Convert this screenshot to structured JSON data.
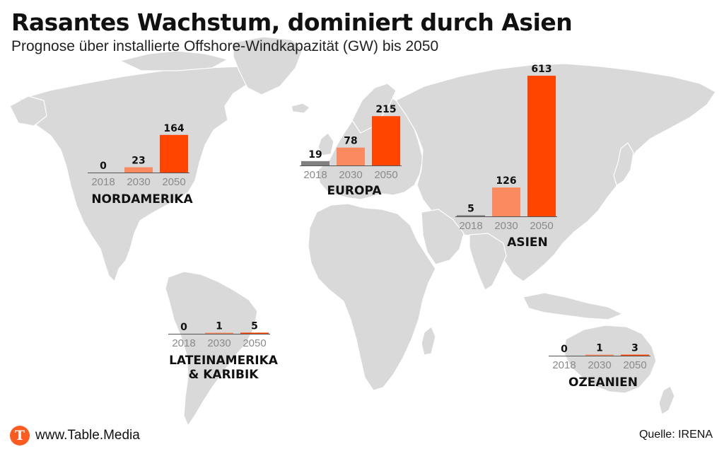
{
  "title": "Rasantes Wachstum, dominiert durch Asien",
  "subtitle": "Prognose über installierte Offshore-Windkapazität (GW) bis 2050",
  "colors": {
    "land": "#d9d9d9",
    "background": "#ffffff",
    "bar_2018": "#7f7f7f",
    "bar_2030": "#fb8a60",
    "bar_2050": "#ff4500",
    "axis_label": "#8a8a8a",
    "baseline": "#555555"
  },
  "chart_data": {
    "type": "bar",
    "categories": [
      "2018",
      "2030",
      "2050"
    ],
    "unit": "GW",
    "regions": [
      {
        "name": "NORDAMERIKA",
        "values": [
          0,
          23,
          164
        ]
      },
      {
        "name": "EUROPA",
        "values": [
          19,
          78,
          215
        ]
      },
      {
        "name": "ASIEN",
        "values": [
          5,
          126,
          613
        ]
      },
      {
        "name": "LATEINAMERIKA\n& KARIBIK",
        "values": [
          0,
          1,
          5
        ]
      },
      {
        "name": "OZEANIEN",
        "values": [
          0,
          1,
          3
        ]
      }
    ]
  },
  "footer": {
    "logo_letter": "T",
    "brand": "www.Table.Media",
    "source": "Quelle: IRENA"
  }
}
